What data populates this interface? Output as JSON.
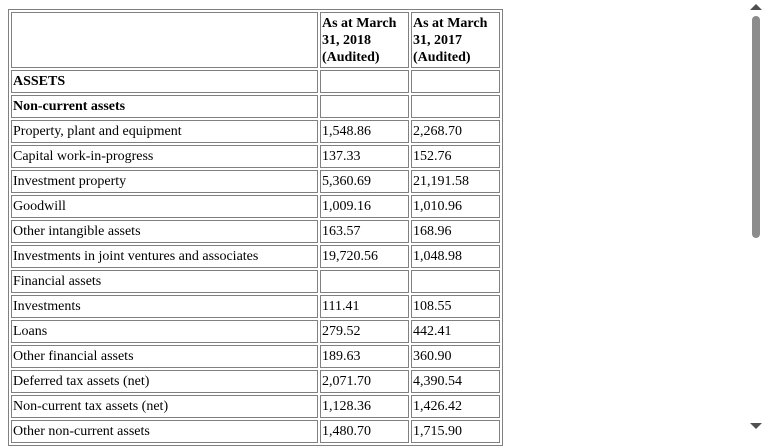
{
  "table": {
    "header": {
      "col1": "As at March 31, 2018 (Audited)",
      "col1_lines": [
        "As at March",
        "31, 2018",
        "(Audited)"
      ],
      "col2_lines": [
        "As at March",
        "31, 2017",
        "(Audited)"
      ]
    },
    "sections": {
      "assets": "ASSETS",
      "non_current": "Non-current assets",
      "financial_assets": "Financial assets"
    },
    "rows_a": [
      {
        "label": "Property, plant and equipment",
        "v2018": "1,548.86",
        "v2017": "2,268.70"
      },
      {
        "label": "Capital work-in-progress",
        "v2018": "137.33",
        "v2017": "152.76"
      },
      {
        "label": "Investment property",
        "v2018": "5,360.69",
        "v2017": "21,191.58"
      },
      {
        "label": "Goodwill",
        "v2018": "1,009.16",
        "v2017": "1,010.96"
      },
      {
        "label": "Other intangible assets",
        "v2018": "163.57",
        "v2017": "168.96"
      },
      {
        "label": "Investments in joint ventures and associates",
        "v2018": "19,720.56",
        "v2017": "1,048.98"
      }
    ],
    "rows_b": [
      {
        "label": "Investments",
        "v2018": "111.41",
        "v2017": "108.55"
      },
      {
        "label": "Loans",
        "v2018": "279.52",
        "v2017": "442.41"
      },
      {
        "label": "Other financial assets",
        "v2018": "189.63",
        "v2017": "360.90"
      },
      {
        "label": "Deferred tax assets (net)",
        "v2018": "2,071.70",
        "v2017": "4,390.54"
      },
      {
        "label": "Non-current tax assets (net)",
        "v2018": "1,128.36",
        "v2017": "1,426.42"
      },
      {
        "label": "Other non-current assets",
        "v2018": "1,480.70",
        "v2017": "1,715.90"
      }
    ]
  }
}
